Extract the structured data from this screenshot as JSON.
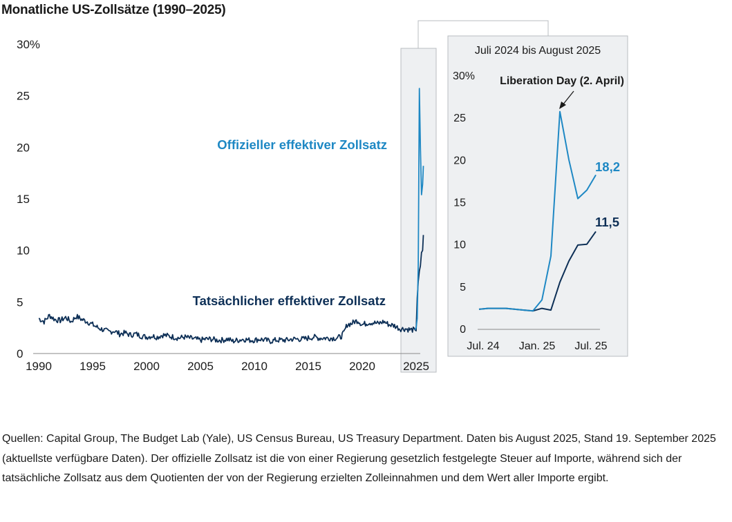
{
  "title": "Monatliche US-Zollsätze (1990–2025)",
  "colors": {
    "official": "#1e88c4",
    "actual": "#0d2f56",
    "panel_bg": "#eef0f2",
    "panel_border": "#b8bcc0",
    "axis": "#8a8a8a"
  },
  "chart_data": [
    {
      "type": "line",
      "title": "Monatliche US-Zollsätze (1990–2025)",
      "xlabel": "",
      "ylabel": "",
      "xlim": [
        1990,
        2025.9
      ],
      "ylim": [
        0,
        30
      ],
      "x_ticks": [
        1990,
        1995,
        2000,
        2005,
        2010,
        2015,
        2020,
        2025
      ],
      "x_tick_labels": [
        "1990",
        "1995",
        "2000",
        "2005",
        "2010",
        "2015",
        "2020",
        "2025"
      ],
      "y_ticks": [
        0,
        5,
        10,
        15,
        20,
        25,
        30
      ],
      "y_tick_labels": [
        "0",
        "5",
        "10",
        "15",
        "20",
        "25",
        "30%"
      ],
      "series": [
        {
          "name": "Tatsächlicher effektiver Zollsatz",
          "x": [
            1990.0,
            1990.5,
            1991.0,
            1991.5,
            1992.0,
            1992.5,
            1993.0,
            1993.5,
            1994.0,
            1994.5,
            1995.0,
            1995.5,
            1996.0,
            1996.5,
            1997.0,
            1997.5,
            1998.0,
            1998.5,
            1999.0,
            1999.5,
            2000.0,
            2000.5,
            2001.0,
            2001.5,
            2002.0,
            2002.5,
            2003.0,
            2003.5,
            2004.0,
            2004.5,
            2005.0,
            2005.5,
            2006.0,
            2006.5,
            2007.0,
            2007.5,
            2008.0,
            2008.5,
            2009.0,
            2009.5,
            2010.0,
            2010.5,
            2011.0,
            2011.5,
            2012.0,
            2012.5,
            2013.0,
            2013.5,
            2014.0,
            2014.5,
            2015.0,
            2015.5,
            2016.0,
            2016.5,
            2017.0,
            2017.5,
            2018.0,
            2018.3,
            2018.6,
            2019.0,
            2019.3,
            2019.6,
            2020.0,
            2020.3,
            2020.6,
            2021.0,
            2021.5,
            2022.0,
            2022.5,
            2023.0,
            2023.5,
            2024.0,
            2024.5,
            2024.9,
            2025.0,
            2025.1,
            2025.2,
            2025.3,
            2025.4,
            2025.5,
            2025.6,
            2025.67
          ],
          "values": [
            3.4,
            3.1,
            3.7,
            3.3,
            3.2,
            3.5,
            3.1,
            3.6,
            3.3,
            3.1,
            2.8,
            2.5,
            2.3,
            2.1,
            2.2,
            1.9,
            2.0,
            1.8,
            1.9,
            1.7,
            1.6,
            1.7,
            1.6,
            1.8,
            1.7,
            1.6,
            1.5,
            1.6,
            1.5,
            1.4,
            1.3,
            1.4,
            1.4,
            1.3,
            1.3,
            1.4,
            1.2,
            1.3,
            1.4,
            1.3,
            1.3,
            1.4,
            1.3,
            1.2,
            1.3,
            1.3,
            1.3,
            1.4,
            1.4,
            1.4,
            1.5,
            1.6,
            1.5,
            1.5,
            1.5,
            1.5,
            1.6,
            2.0,
            2.8,
            2.9,
            3.1,
            3.2,
            2.8,
            2.9,
            3.0,
            3.0,
            2.9,
            3.1,
            2.8,
            2.7,
            2.4,
            2.4,
            2.3,
            2.3,
            2.2,
            5.4,
            7.0,
            8.0,
            8.5,
            9.8,
            10.0,
            11.5
          ]
        },
        {
          "name": "Offizieller effektiver Zollsatz",
          "x": [
            2024.9,
            2025.0,
            2025.1,
            2025.2,
            2025.3,
            2025.4,
            2025.5,
            2025.6,
            2025.67
          ],
          "values": [
            2.3,
            2.5,
            3.4,
            8.6,
            25.7,
            20.0,
            15.4,
            16.4,
            18.2
          ]
        }
      ],
      "legend": "direct-labels"
    },
    {
      "type": "line",
      "title": "Juli 2024 bis August 2025",
      "xlim": [
        0,
        13
      ],
      "ylim": [
        0,
        30
      ],
      "x_ticks": [
        0,
        6,
        12
      ],
      "x_tick_labels": [
        "Jul. 24",
        "Jan. 25",
        "Jul. 25"
      ],
      "y_ticks": [
        0,
        5,
        10,
        15,
        20,
        25,
        30
      ],
      "y_tick_labels": [
        "0",
        "5",
        "10",
        "15",
        "20",
        "25",
        "30%"
      ],
      "series": [
        {
          "name": "Tatsächlicher effektiver Zollsatz",
          "x": [
            0,
            1,
            2,
            3,
            4,
            5,
            6,
            7,
            8,
            9,
            10,
            11,
            12,
            13
          ],
          "values": [
            2.3,
            2.4,
            2.4,
            2.4,
            2.3,
            2.2,
            2.1,
            2.4,
            2.2,
            5.5,
            8.0,
            9.9,
            10.0,
            11.5
          ]
        },
        {
          "name": "Offizieller effektiver Zollsatz",
          "x": [
            0,
            1,
            2,
            3,
            4,
            5,
            6,
            7,
            8,
            9,
            10,
            11,
            12,
            13
          ],
          "values": [
            2.3,
            2.4,
            2.4,
            2.4,
            2.3,
            2.2,
            2.1,
            3.4,
            8.6,
            25.7,
            20.0,
            15.4,
            16.4,
            18.2
          ]
        }
      ],
      "end_labels": {
        "official": "18,2",
        "actual": "11,5"
      },
      "annotation": {
        "text": "Liberation Day (2. April)",
        "at_x": 9,
        "at_value": 25.7
      }
    }
  ],
  "labels": {
    "official_series": "Offizieller effektiver Zollsatz",
    "actual_series": "Tatsächlicher effektiver Zollsatz"
  },
  "footnote": "Quellen: Capital Group, The Budget Lab (Yale), US Census Bureau, US Treasury Department. Daten bis August 2025, Stand 19. September 2025 (aktuellste verfügbare Daten). Der offizielle Zollsatz ist die von einer Regierung gesetzlich festgelegte Steuer auf Importe, während sich der tatsächliche Zollsatz aus dem Quotienten der von der Regierung erzielten Zolleinnahmen und dem Wert aller Importe ergibt."
}
